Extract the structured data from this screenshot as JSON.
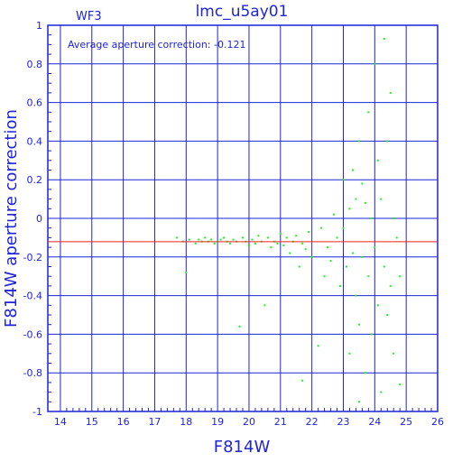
{
  "chart_data": {
    "type": "scatter",
    "title": "lmc_u5ay01",
    "subtitle": "WF3",
    "xlabel": "F814W",
    "ylabel": "F814W aperture correction",
    "annotation": "Average aperture correction: -0.121",
    "average_line": -0.121,
    "xlim": [
      13.6,
      26
    ],
    "ylim": [
      -1,
      1
    ],
    "x_ticks": [
      "14",
      "15",
      "16",
      "17",
      "18",
      "19",
      "20",
      "21",
      "22",
      "23",
      "24",
      "25",
      "26"
    ],
    "y_ticks": [
      "1",
      "0.8",
      "0.6",
      "0.4",
      "0.2",
      "0",
      "-0.2",
      "-0.4",
      "-0.6",
      "-0.8",
      "-1"
    ],
    "grid": true,
    "colors": {
      "axis": "#1f24d6",
      "grid": "#1f24d6",
      "points": "#22ee22",
      "average_line": "#ee2222"
    },
    "points": [
      [
        17.7,
        -0.1
      ],
      [
        17.9,
        -0.12
      ],
      [
        18.0,
        -0.28
      ],
      [
        18.1,
        -0.11
      ],
      [
        18.3,
        -0.13
      ],
      [
        18.4,
        -0.11
      ],
      [
        18.5,
        -0.12
      ],
      [
        18.6,
        -0.1
      ],
      [
        18.7,
        -0.12
      ],
      [
        18.8,
        -0.11
      ],
      [
        18.9,
        -0.13
      ],
      [
        19.0,
        -0.12
      ],
      [
        19.1,
        -0.11
      ],
      [
        19.2,
        -0.1
      ],
      [
        19.3,
        -0.12
      ],
      [
        19.4,
        -0.13
      ],
      [
        19.5,
        -0.11
      ],
      [
        19.6,
        -0.12
      ],
      [
        19.7,
        -0.56
      ],
      [
        19.8,
        -0.1
      ],
      [
        19.9,
        -0.12
      ],
      [
        20.0,
        -0.14
      ],
      [
        20.1,
        -0.11
      ],
      [
        20.2,
        -0.13
      ],
      [
        20.3,
        -0.09
      ],
      [
        20.4,
        -0.12
      ],
      [
        20.5,
        -0.45
      ],
      [
        20.6,
        -0.1
      ],
      [
        20.7,
        -0.15
      ],
      [
        20.8,
        -0.12
      ],
      [
        20.9,
        -0.13
      ],
      [
        21.0,
        -0.08
      ],
      [
        21.1,
        -0.14
      ],
      [
        21.2,
        -0.1
      ],
      [
        21.3,
        -0.18
      ],
      [
        21.4,
        -0.12
      ],
      [
        21.5,
        -0.09
      ],
      [
        21.6,
        -0.25
      ],
      [
        21.7,
        -0.13
      ],
      [
        21.8,
        -0.16
      ],
      [
        21.9,
        -0.07
      ],
      [
        22.0,
        -0.2
      ],
      [
        21.7,
        -0.84
      ],
      [
        22.2,
        -0.66
      ],
      [
        22.3,
        -0.05
      ],
      [
        22.4,
        -0.3
      ],
      [
        22.5,
        -0.15
      ],
      [
        22.6,
        -0.22
      ],
      [
        22.7,
        0.02
      ],
      [
        22.8,
        -0.1
      ],
      [
        22.9,
        -0.35
      ],
      [
        23.0,
        0.2
      ],
      [
        23.0,
        -0.05
      ],
      [
        23.1,
        -0.25
      ],
      [
        23.2,
        0.05
      ],
      [
        23.2,
        -0.7
      ],
      [
        23.3,
        -0.18
      ],
      [
        23.3,
        0.25
      ],
      [
        23.4,
        -0.4
      ],
      [
        23.4,
        0.1
      ],
      [
        23.5,
        -0.55
      ],
      [
        23.5,
        0.4
      ],
      [
        23.6,
        -0.2
      ],
      [
        23.6,
        0.18
      ],
      [
        23.7,
        0.08
      ],
      [
        23.7,
        -0.8
      ],
      [
        23.8,
        -0.3
      ],
      [
        23.8,
        0.55
      ],
      [
        23.9,
        0.0
      ],
      [
        23.9,
        -0.6
      ],
      [
        24.0,
        0.8
      ],
      [
        24.0,
        -0.15
      ],
      [
        24.1,
        0.3
      ],
      [
        24.1,
        -0.45
      ],
      [
        24.2,
        0.1
      ],
      [
        24.2,
        -0.9
      ],
      [
        24.3,
        0.93
      ],
      [
        24.3,
        -0.25
      ],
      [
        24.4,
        0.4
      ],
      [
        24.4,
        -0.5
      ],
      [
        24.5,
        0.65
      ],
      [
        24.5,
        -0.35
      ],
      [
        24.6,
        0.0
      ],
      [
        24.6,
        -0.7
      ],
      [
        24.7,
        -0.1
      ],
      [
        24.8,
        -0.3
      ],
      [
        23.5,
        -0.95
      ],
      [
        24.8,
        -0.86
      ]
    ]
  }
}
